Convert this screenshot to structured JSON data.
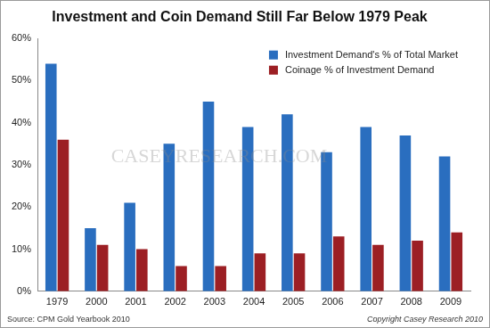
{
  "chart_data": {
    "type": "bar",
    "title": "Investment and Coin Demand Still Far Below 1979 Peak",
    "categories": [
      "1979",
      "2000",
      "2001",
      "2002",
      "2003",
      "2004",
      "2005",
      "2006",
      "2007",
      "2008",
      "2009"
    ],
    "series": [
      {
        "name": "Investment Demand's % of Total Market",
        "color": "#2a6ebf",
        "values": [
          54,
          15,
          21,
          35,
          45,
          39,
          42,
          33,
          39,
          37,
          32
        ]
      },
      {
        "name": "Coinage % of Investment Demand",
        "color": "#9c1f24",
        "values": [
          36,
          11,
          10,
          6,
          6,
          9,
          9,
          13,
          11,
          12,
          14
        ]
      }
    ],
    "ylim": [
      0,
      60
    ],
    "yticks": [
      {
        "value": 0,
        "label": "0%"
      },
      {
        "value": 10,
        "label": "10%"
      },
      {
        "value": 20,
        "label": "20%"
      },
      {
        "value": 30,
        "label": "30%"
      },
      {
        "value": 40,
        "label": "40%"
      },
      {
        "value": 50,
        "label": "50%"
      },
      {
        "value": 60,
        "label": "60%"
      }
    ],
    "grid": false,
    "legend": "top-right",
    "source": "Source: CPM Gold Yearbook 2010",
    "copyright": "Copyright Casey Research 2010",
    "watermark": "CaseyResearch.com"
  }
}
